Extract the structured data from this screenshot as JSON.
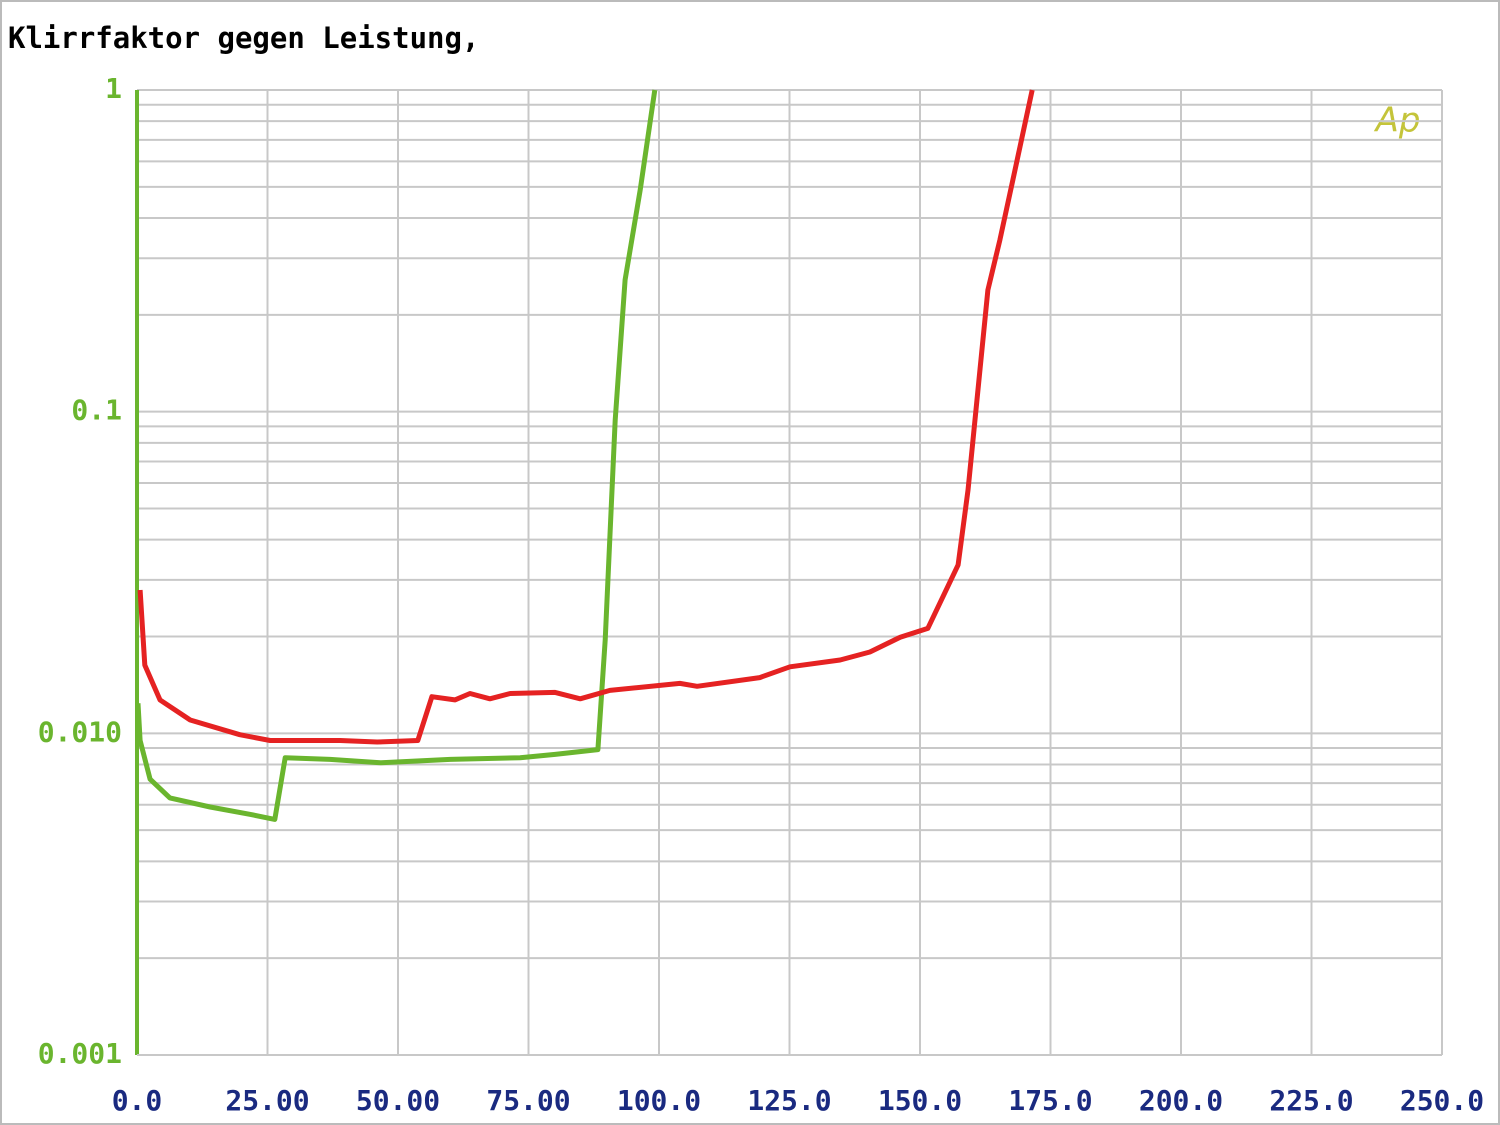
{
  "chart_data": {
    "type": "line",
    "title": "Klirrfaktor gegen Leistung,",
    "logo": "Ap",
    "log_y": true,
    "grid": true,
    "xlim": [
      0,
      250
    ],
    "ylim": [
      0.001,
      1
    ],
    "xticks": [
      {
        "value": 0,
        "label": "0.0"
      },
      {
        "value": 25,
        "label": "25.00"
      },
      {
        "value": 50,
        "label": "50.00"
      },
      {
        "value": 75,
        "label": "75.00"
      },
      {
        "value": 100,
        "label": "100.0"
      },
      {
        "value": 125,
        "label": "125.0"
      },
      {
        "value": 150,
        "label": "150.0"
      },
      {
        "value": 175,
        "label": "175.0"
      },
      {
        "value": 200,
        "label": "200.0"
      },
      {
        "value": 225,
        "label": "225.0"
      },
      {
        "value": 250,
        "label": "250.0"
      }
    ],
    "yticks": [
      {
        "value": 0.001,
        "label": "0.001"
      },
      {
        "value": 0.01,
        "label": "0.010"
      },
      0.1,
      1
    ],
    "series": [
      {
        "color": "#6ab52e",
        "x": [
          0.2,
          0.6,
          2.5,
          6.3,
          14,
          21.6,
          26.4,
          28.4,
          37,
          46.6,
          60,
          73.4,
          80.1,
          88.3,
          89.7,
          91.6,
          93.5,
          96.4,
          99.2
        ],
        "values": [
          0.0124,
          0.0095,
          0.0072,
          0.0063,
          0.0059,
          0.0056,
          0.0054,
          0.0084,
          0.0083,
          0.0081,
          0.0083,
          0.0084,
          0.0086,
          0.0089,
          0.0195,
          0.0942,
          0.257,
          0.489,
          1.0
        ]
      },
      {
        "color": "#e52222",
        "x": [
          0.6,
          1.5,
          4.4,
          10.2,
          19.7,
          25.5,
          38.9,
          46,
          53.8,
          56.5,
          60.9,
          63.8,
          67.6,
          71.5,
          80.1,
          84.9,
          90.6,
          104,
          107.3,
          119.3,
          125.1,
          134.7,
          140.4,
          146.2,
          151.5,
          157.3,
          159.2,
          163,
          165.3,
          168.2,
          171.5
        ],
        "values": [
          0.0279,
          0.0163,
          0.0127,
          0.011,
          0.0099,
          0.0095,
          0.0095,
          0.0094,
          0.0095,
          0.013,
          0.0127,
          0.0133,
          0.0128,
          0.0133,
          0.0134,
          0.0128,
          0.0136,
          0.0143,
          0.014,
          0.0149,
          0.0161,
          0.0169,
          0.0179,
          0.0199,
          0.0212,
          0.0334,
          0.057,
          0.239,
          0.342,
          0.564,
          1.0
        ]
      }
    ]
  }
}
